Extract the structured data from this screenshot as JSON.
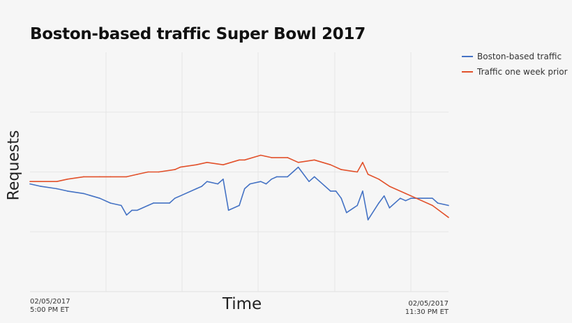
{
  "chart_data": {
    "type": "line",
    "title": "Boston-based traffic Super Bowl 2017",
    "xlabel": "Time",
    "ylabel": "Requests",
    "x_ticks": [
      {
        "line1": "02/05/2017",
        "line2": "5:00 PM ET"
      },
      {
        "line1": "02/05/2017",
        "line2": "11:30 PM ET"
      }
    ],
    "xlim": [
      "17:00",
      "23:30"
    ],
    "ylim": [
      0,
      100
    ],
    "y_ticks_labeled": false,
    "grid": true,
    "legend_position": "top-right",
    "series": [
      {
        "name": "Boston-based traffic",
        "color": "#4472c4",
        "x": [
          "17:00",
          "17:10",
          "17:25",
          "17:35",
          "17:50",
          "18:05",
          "18:15",
          "18:25",
          "18:30",
          "18:35",
          "18:40",
          "18:50",
          "18:55",
          "19:10",
          "19:15",
          "19:20",
          "19:35",
          "19:40",
          "19:45",
          "19:55",
          "20:00",
          "20:05",
          "20:15",
          "20:20",
          "20:25",
          "20:35",
          "20:40",
          "20:45",
          "20:50",
          "21:00",
          "21:05",
          "21:10",
          "21:20",
          "21:25",
          "21:30",
          "21:40",
          "21:45",
          "21:50",
          "21:55",
          "22:05",
          "22:10",
          "22:15",
          "22:25",
          "22:30",
          "22:35",
          "22:45",
          "22:50",
          "22:55",
          "23:00",
          "23:10",
          "23:15",
          "23:20",
          "23:30"
        ],
        "values": [
          45,
          44,
          43,
          42,
          41,
          39,
          37,
          36,
          32,
          34,
          34,
          36,
          37,
          37,
          39,
          40,
          43,
          44,
          46,
          45,
          47,
          34,
          36,
          43,
          45,
          46,
          45,
          47,
          48,
          48,
          50,
          52,
          46,
          48,
          46,
          42,
          42,
          39,
          33,
          36,
          42,
          30,
          37,
          40,
          35,
          39,
          38,
          39,
          39,
          39,
          39,
          37,
          36
        ]
      },
      {
        "name": "Traffic one week prior",
        "color": "#e2512b",
        "x": [
          "17:00",
          "17:10",
          "17:25",
          "17:35",
          "17:50",
          "18:05",
          "18:15",
          "18:30",
          "18:40",
          "18:50",
          "19:00",
          "19:15",
          "19:20",
          "19:35",
          "19:45",
          "20:00",
          "20:15",
          "20:20",
          "20:35",
          "20:45",
          "21:00",
          "21:10",
          "21:25",
          "21:40",
          "21:50",
          "22:05",
          "22:10",
          "22:15",
          "22:25",
          "22:35",
          "22:50",
          "23:00",
          "23:15",
          "23:30"
        ],
        "values": [
          46,
          46,
          46,
          47,
          48,
          48,
          48,
          48,
          49,
          50,
          50,
          51,
          52,
          53,
          54,
          53,
          55,
          55,
          57,
          56,
          56,
          54,
          55,
          53,
          51,
          50,
          54,
          49,
          47,
          44,
          41,
          39,
          36,
          31
        ]
      }
    ]
  }
}
